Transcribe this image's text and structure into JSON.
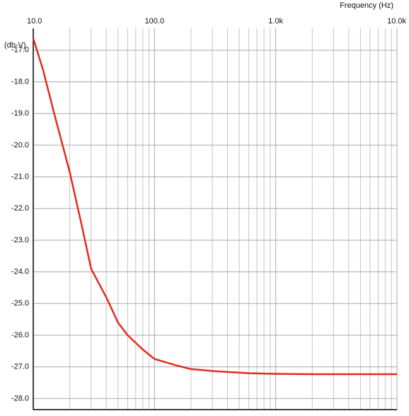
{
  "chart_data": {
    "type": "line",
    "title": "Frequency  (Hz)",
    "y_label": "(db-V)",
    "x_scale": "log",
    "grid": true,
    "xlim": [
      10,
      10000
    ],
    "xticks": [
      {
        "value": 10,
        "label": "10.0"
      },
      {
        "value": 100,
        "label": "100.0"
      },
      {
        "value": 1000,
        "label": "1.0k"
      },
      {
        "value": 10000,
        "label": "10.0k"
      }
    ],
    "ylim": [
      -28.35,
      -16.31
    ],
    "yticks": [
      {
        "value": -17,
        "label": "-17.0"
      },
      {
        "value": -18,
        "label": "-18.0"
      },
      {
        "value": -19,
        "label": "-19.0"
      },
      {
        "value": -20,
        "label": "-20.0"
      },
      {
        "value": -21,
        "label": "-21.0"
      },
      {
        "value": -22,
        "label": "-22.0"
      },
      {
        "value": -23,
        "label": "-23.0"
      },
      {
        "value": -24,
        "label": "-24.0"
      },
      {
        "value": -25,
        "label": "-25.0"
      },
      {
        "value": -26,
        "label": "-26.0"
      },
      {
        "value": -27,
        "label": "-27.0"
      },
      {
        "value": -28,
        "label": "-28.0"
      }
    ],
    "x": [
      10,
      12,
      15,
      20,
      25,
      30,
      40,
      50,
      60,
      80,
      100,
      150,
      200,
      300,
      400,
      600,
      1000,
      2000,
      5000,
      10000
    ],
    "series": [
      {
        "color": "#e42b1f",
        "values": [
          -16.63,
          -17.6,
          -19.05,
          -20.85,
          -22.5,
          -23.9,
          -24.8,
          -25.6,
          -26.0,
          -26.45,
          -26.75,
          -26.95,
          -27.07,
          -27.13,
          -27.16,
          -27.2,
          -27.22,
          -27.23,
          -27.23,
          -27.23
        ]
      }
    ]
  }
}
